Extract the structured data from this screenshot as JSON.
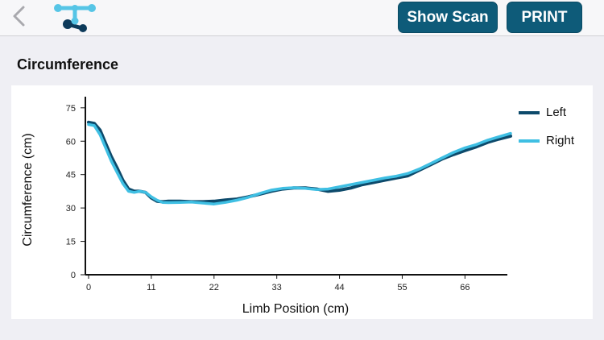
{
  "header": {
    "show_scan_label": "Show Scan",
    "print_label": "PRINT",
    "back_icon": "chevron-left-icon",
    "logo_icon": "molecule-logo-icon",
    "brand_color": "#0e5b79",
    "logo_light": "#56c5e6",
    "logo_dark": "#0d3a5a"
  },
  "section": {
    "title": "Circumference"
  },
  "chart_data": {
    "type": "line",
    "title": "",
    "xlabel": "Limb Position (cm)",
    "ylabel": "Circumference (cm)",
    "xlim": [
      0,
      74
    ],
    "ylim": [
      0,
      80
    ],
    "xticks": [
      0,
      11,
      22,
      33,
      44,
      55,
      66
    ],
    "yticks": [
      0,
      15,
      30,
      45,
      60,
      75
    ],
    "x_tick_labels": [
      "0",
      "11",
      "22",
      "33",
      "44",
      "55",
      "66"
    ],
    "y_tick_labels": [
      "0",
      "15",
      "30",
      "45",
      "60",
      "75"
    ],
    "legend_position": "right",
    "grid": false,
    "series": [
      {
        "name": "Left",
        "color": "#0d4a6b",
        "points": [
          [
            0,
            68.5
          ],
          [
            1,
            68
          ],
          [
            2,
            65
          ],
          [
            3,
            59
          ],
          [
            4,
            53
          ],
          [
            5,
            48
          ],
          [
            6,
            42.5
          ],
          [
            7,
            38.5
          ],
          [
            8,
            37.5
          ],
          [
            9,
            37.5
          ],
          [
            10,
            37
          ],
          [
            11,
            34.5
          ],
          [
            12,
            33
          ],
          [
            13,
            32.8
          ],
          [
            14,
            33
          ],
          [
            16,
            33
          ],
          [
            18,
            32.8
          ],
          [
            20,
            32.8
          ],
          [
            22,
            33
          ],
          [
            24,
            33.6
          ],
          [
            26,
            34
          ],
          [
            28,
            35
          ],
          [
            30,
            36.2
          ],
          [
            32,
            37.5
          ],
          [
            34,
            38.5
          ],
          [
            36,
            39
          ],
          [
            38,
            39
          ],
          [
            40,
            38.5
          ],
          [
            42,
            37.5
          ],
          [
            44,
            38
          ],
          [
            46,
            39
          ],
          [
            48,
            40.5
          ],
          [
            50,
            41.5
          ],
          [
            52,
            42.5
          ],
          [
            54,
            43.5
          ],
          [
            56,
            44.5
          ],
          [
            58,
            47
          ],
          [
            60,
            49.5
          ],
          [
            62,
            52
          ],
          [
            64,
            54
          ],
          [
            66,
            55.8
          ],
          [
            68,
            57.5
          ],
          [
            70,
            59.5
          ],
          [
            72,
            61
          ],
          [
            74,
            62.3
          ]
        ]
      },
      {
        "name": "Right",
        "color": "#3fbfe3",
        "points": [
          [
            0,
            67.5
          ],
          [
            1,
            67
          ],
          [
            2,
            63
          ],
          [
            3,
            57
          ],
          [
            4,
            51
          ],
          [
            5,
            46
          ],
          [
            6,
            41
          ],
          [
            7,
            37.5
          ],
          [
            8,
            37
          ],
          [
            9,
            37.5
          ],
          [
            10,
            37
          ],
          [
            11,
            35
          ],
          [
            12,
            33.5
          ],
          [
            13,
            32.5
          ],
          [
            14,
            32.4
          ],
          [
            16,
            32.5
          ],
          [
            18,
            32.7
          ],
          [
            20,
            32.2
          ],
          [
            22,
            31.8
          ],
          [
            24,
            32.5
          ],
          [
            26,
            33.5
          ],
          [
            28,
            34.8
          ],
          [
            30,
            36.5
          ],
          [
            32,
            38
          ],
          [
            34,
            38.8
          ],
          [
            36,
            39.1
          ],
          [
            38,
            38.8
          ],
          [
            40,
            38.3
          ],
          [
            42,
            38.5
          ],
          [
            44,
            39.5
          ],
          [
            46,
            40.5
          ],
          [
            48,
            41.5
          ],
          [
            50,
            42.5
          ],
          [
            52,
            43.5
          ],
          [
            54,
            44.3
          ],
          [
            56,
            45.5
          ],
          [
            58,
            47.5
          ],
          [
            60,
            50
          ],
          [
            62,
            52.5
          ],
          [
            64,
            55
          ],
          [
            66,
            57
          ],
          [
            68,
            58.5
          ],
          [
            70,
            60.5
          ],
          [
            72,
            62
          ],
          [
            74,
            63.5
          ]
        ]
      }
    ]
  }
}
